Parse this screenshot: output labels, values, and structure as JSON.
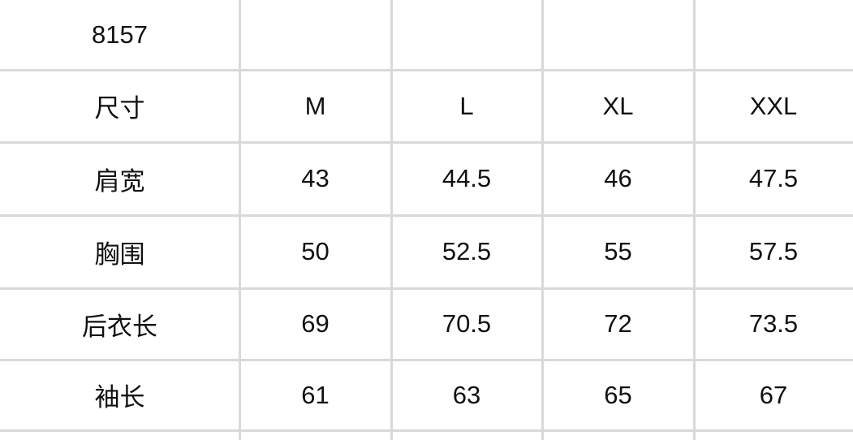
{
  "table": {
    "rows": [
      [
        "8157",
        "",
        "",
        "",
        ""
      ],
      [
        "尺寸",
        "M",
        "L",
        "XL",
        "XXL"
      ],
      [
        "肩宽",
        "43",
        "44.5",
        "46",
        "47.5"
      ],
      [
        "胸围",
        "50",
        "52.5",
        "55",
        "57.5"
      ],
      [
        "后衣长",
        "69",
        "70.5",
        "72",
        "73.5"
      ],
      [
        "袖长",
        "61",
        "63",
        "65",
        "67"
      ]
    ]
  }
}
